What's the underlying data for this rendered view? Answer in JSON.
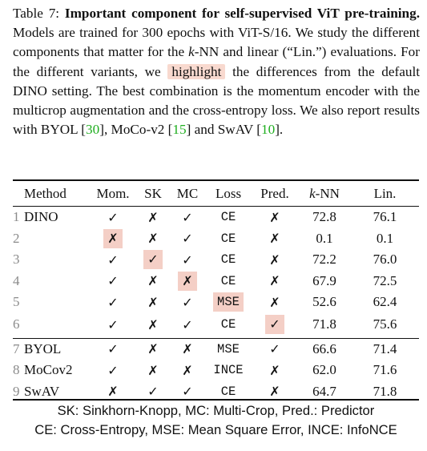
{
  "caption": {
    "label": "Table 7:",
    "title": "Important component for self-supervised ViT pre-training.",
    "text_1": " Models are trained for 300 epochs with ViT-S/16. We study the different components that matter for the ",
    "knn_k": "k",
    "text_2": "-NN and linear (“Lin.”) evaluations. For the different variants, we ",
    "highlight_word": "highlight",
    "text_3": " the differences from the default DINO setting. The best combination is the momentum encoder with the multicrop augmentation and the cross-entropy loss. We also report results with BYOL [",
    "cite_byol": "30",
    "text_4": "], MoCo-v2 [",
    "cite_moco": "15",
    "text_5": "] and SwAV [",
    "cite_swav": "10",
    "text_6": "]."
  },
  "table": {
    "headers": {
      "method": "Method",
      "mom": "Mom.",
      "sk": "SK",
      "mc": "MC",
      "loss": "Loss",
      "pred": "Pred.",
      "knn_k": "k",
      "knn_suffix": "-NN",
      "lin": "Lin."
    },
    "rows": [
      {
        "num": "1",
        "name": "DINO",
        "mom": "✓",
        "sk": "✗",
        "mc": "✓",
        "loss": "CE",
        "pred": "✗",
        "knn": "72.8",
        "lin": "76.1"
      },
      {
        "num": "2",
        "name": "",
        "mom": "✗",
        "sk": "✗",
        "mc": "✓",
        "loss": "CE",
        "pred": "✗",
        "knn": "0.1",
        "lin": "0.1"
      },
      {
        "num": "3",
        "name": "",
        "mom": "✓",
        "sk": "✓",
        "mc": "✓",
        "loss": "CE",
        "pred": "✗",
        "knn": "72.2",
        "lin": "76.0"
      },
      {
        "num": "4",
        "name": "",
        "mom": "✓",
        "sk": "✗",
        "mc": "✗",
        "loss": "CE",
        "pred": "✗",
        "knn": "67.9",
        "lin": "72.5"
      },
      {
        "num": "5",
        "name": "",
        "mom": "✓",
        "sk": "✗",
        "mc": "✓",
        "loss": "MSE",
        "pred": "✗",
        "knn": "52.6",
        "lin": "62.4"
      },
      {
        "num": "6",
        "name": "",
        "mom": "✓",
        "sk": "✗",
        "mc": "✓",
        "loss": "CE",
        "pred": "✓",
        "knn": "71.8",
        "lin": "75.6"
      },
      {
        "num": "7",
        "name": "BYOL",
        "mom": "✓",
        "sk": "✗",
        "mc": "✗",
        "loss": "MSE",
        "pred": "✓",
        "knn": "66.6",
        "lin": "71.4"
      },
      {
        "num": "8",
        "name": "MoCov2",
        "mom": "✓",
        "sk": "✗",
        "mc": "✗",
        "loss": "INCE",
        "pred": "✗",
        "knn": "62.0",
        "lin": "71.6"
      },
      {
        "num": "9",
        "name": "SwAV",
        "mom": "✗",
        "sk": "✓",
        "mc": "✓",
        "loss": "CE",
        "pred": "✗",
        "knn": "64.7",
        "lin": "71.8"
      }
    ]
  },
  "footnote": {
    "line1": "SK: Sinkhorn-Knopp, MC: Multi-Crop, Pred.: Predictor",
    "line2": "CE: Cross-Entropy, MSE: Mean Square Error, INCE: InfoNCE"
  },
  "colors": {
    "highlight": "#f4cfc6",
    "citation": "#1fae1f",
    "row_number": "#8b8b8b"
  }
}
